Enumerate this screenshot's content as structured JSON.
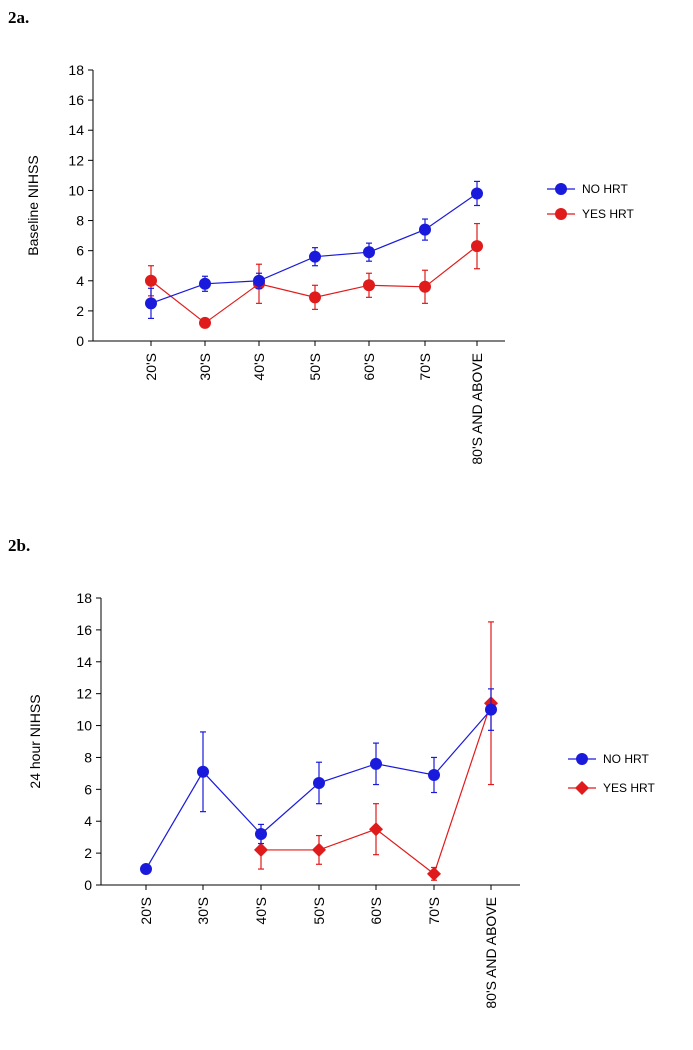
{
  "panels": [
    {
      "label": "2a."
    },
    {
      "label": "2b."
    }
  ],
  "colors": {
    "no_hrt": "#1a1adc",
    "yes_hrt": "#e01b1b",
    "axis": "#000000"
  },
  "chart_data": [
    {
      "type": "line",
      "title": "",
      "xlabel": "",
      "ylabel": "Baseline NIHSS",
      "ylim": [
        0,
        18
      ],
      "yticks": [
        0,
        2,
        4,
        6,
        8,
        10,
        12,
        14,
        16,
        18
      ],
      "categories": [
        "20'S",
        "30'S",
        "40'S",
        "50'S",
        "60'S",
        "70'S",
        "80'S AND ABOVE"
      ],
      "grid": false,
      "legend": "right",
      "series": [
        {
          "name": "NO HRT",
          "marker": "circle",
          "values": [
            2.5,
            3.8,
            4.0,
            5.6,
            5.9,
            7.4,
            9.8
          ],
          "err": [
            1.0,
            0.5,
            0.5,
            0.6,
            0.6,
            0.7,
            0.8
          ]
        },
        {
          "name": "YES HRT",
          "marker": "circle",
          "values": [
            4.0,
            1.2,
            3.8,
            2.9,
            3.7,
            3.6,
            6.3
          ],
          "err": [
            1.0,
            0.3,
            1.3,
            0.8,
            0.8,
            1.1,
            1.5
          ]
        }
      ]
    },
    {
      "type": "line",
      "title": "",
      "xlabel": "",
      "ylabel": "24 hour NIHSS",
      "ylim": [
        0,
        18
      ],
      "yticks": [
        0,
        2,
        4,
        6,
        8,
        10,
        12,
        14,
        16,
        18
      ],
      "categories": [
        "20'S",
        "30'S",
        "40'S",
        "50'S",
        "60'S",
        "70'S",
        "80'S AND ABOVE"
      ],
      "grid": false,
      "legend": "right",
      "series": [
        {
          "name": "NO HRT",
          "marker": "circle",
          "values": [
            1.0,
            7.1,
            3.2,
            6.4,
            7.6,
            6.9,
            11.0
          ],
          "err": [
            0.2,
            2.5,
            0.6,
            1.3,
            1.3,
            1.1,
            1.3
          ]
        },
        {
          "name": "YES HRT",
          "marker": "diamond",
          "values": [
            null,
            null,
            2.2,
            2.2,
            3.5,
            0.7,
            11.4
          ],
          "err": [
            null,
            null,
            1.2,
            0.9,
            1.6,
            0.4,
            5.1
          ]
        }
      ]
    }
  ]
}
